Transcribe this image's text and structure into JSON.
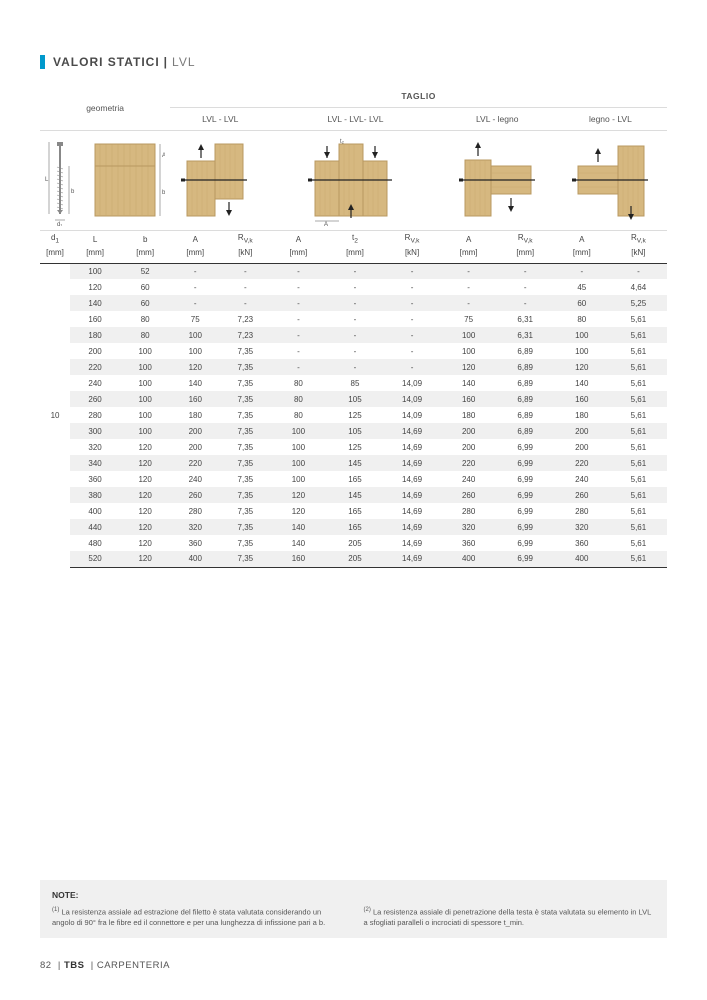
{
  "title": {
    "main": "VALORI STATICI",
    "sub": "LVL"
  },
  "palette": {
    "accent": "#0099cc",
    "wood": "#d6b880",
    "woodgrain": "#c8a86c",
    "arrow": "#222222"
  },
  "header": {
    "taglio": "TAGLIO",
    "groups": [
      "geometria",
      "LVL - LVL",
      "LVL - LVL- LVL",
      "LVL - legno",
      "legno - LVL"
    ],
    "cols_geom": [
      "d₁",
      "L",
      "b"
    ],
    "cols_a": [
      "A",
      "R_{V,k}"
    ],
    "cols_b": [
      "A",
      "t₂",
      "R_{V,k}"
    ],
    "cols_c": [
      "A",
      "R_{V,k}"
    ],
    "cols_d": [
      "A",
      "R_{V,k}"
    ],
    "units_geom": [
      "[mm]",
      "[mm]",
      "[mm]"
    ],
    "units_a": [
      "[mm]",
      "[kN]"
    ],
    "units_b": [
      "[mm]",
      "[mm]",
      "[kN]"
    ],
    "units_c": [
      "[mm]",
      "[mm]",
      "[kN]"
    ],
    "units_d": [
      "[mm]",
      "[kN]"
    ]
  },
  "d1_value": "10",
  "rows": [
    {
      "L": "100",
      "b": "52",
      "a": [
        "-",
        "-"
      ],
      "b3": [
        "-",
        "-",
        "-"
      ],
      "c": [
        "-",
        "-"
      ],
      "d": [
        "-",
        "-"
      ]
    },
    {
      "L": "120",
      "b": "60",
      "a": [
        "-",
        "-"
      ],
      "b3": [
        "-",
        "-",
        "-"
      ],
      "c": [
        "-",
        "-"
      ],
      "d": [
        "45",
        "4,64"
      ]
    },
    {
      "L": "140",
      "b": "60",
      "a": [
        "-",
        "-"
      ],
      "b3": [
        "-",
        "-",
        "-"
      ],
      "c": [
        "-",
        "-"
      ],
      "d": [
        "60",
        "5,25"
      ]
    },
    {
      "L": "160",
      "b": "80",
      "a": [
        "75",
        "7,23"
      ],
      "b3": [
        "-",
        "-",
        "-"
      ],
      "c": [
        "75",
        "6,31"
      ],
      "d": [
        "80",
        "5,61"
      ]
    },
    {
      "L": "180",
      "b": "80",
      "a": [
        "100",
        "7,23"
      ],
      "b3": [
        "-",
        "-",
        "-"
      ],
      "c": [
        "100",
        "6,31"
      ],
      "d": [
        "100",
        "5,61"
      ]
    },
    {
      "L": "200",
      "b": "100",
      "a": [
        "100",
        "7,35"
      ],
      "b3": [
        "-",
        "-",
        "-"
      ],
      "c": [
        "100",
        "6,89"
      ],
      "d": [
        "100",
        "5,61"
      ]
    },
    {
      "L": "220",
      "b": "100",
      "a": [
        "120",
        "7,35"
      ],
      "b3": [
        "-",
        "-",
        "-"
      ],
      "c": [
        "120",
        "6,89"
      ],
      "d": [
        "120",
        "5,61"
      ]
    },
    {
      "L": "240",
      "b": "100",
      "a": [
        "140",
        "7,35"
      ],
      "b3": [
        "80",
        "85",
        "14,09"
      ],
      "c": [
        "140",
        "6,89"
      ],
      "d": [
        "140",
        "5,61"
      ]
    },
    {
      "L": "260",
      "b": "100",
      "a": [
        "160",
        "7,35"
      ],
      "b3": [
        "80",
        "105",
        "14,09"
      ],
      "c": [
        "160",
        "6,89"
      ],
      "d": [
        "160",
        "5,61"
      ]
    },
    {
      "L": "280",
      "b": "100",
      "a": [
        "180",
        "7,35"
      ],
      "b3": [
        "80",
        "125",
        "14,09"
      ],
      "c": [
        "180",
        "6,89"
      ],
      "d": [
        "180",
        "5,61"
      ]
    },
    {
      "L": "300",
      "b": "100",
      "a": [
        "200",
        "7,35"
      ],
      "b3": [
        "100",
        "105",
        "14,69"
      ],
      "c": [
        "200",
        "6,89"
      ],
      "d": [
        "200",
        "5,61"
      ]
    },
    {
      "L": "320",
      "b": "120",
      "a": [
        "200",
        "7,35"
      ],
      "b3": [
        "100",
        "125",
        "14,69"
      ],
      "c": [
        "200",
        "6,99"
      ],
      "d": [
        "200",
        "5,61"
      ]
    },
    {
      "L": "340",
      "b": "120",
      "a": [
        "220",
        "7,35"
      ],
      "b3": [
        "100",
        "145",
        "14,69"
      ],
      "c": [
        "220",
        "6,99"
      ],
      "d": [
        "220",
        "5,61"
      ]
    },
    {
      "L": "360",
      "b": "120",
      "a": [
        "240",
        "7,35"
      ],
      "b3": [
        "100",
        "165",
        "14,69"
      ],
      "c": [
        "240",
        "6,99"
      ],
      "d": [
        "240",
        "5,61"
      ]
    },
    {
      "L": "380",
      "b": "120",
      "a": [
        "260",
        "7,35"
      ],
      "b3": [
        "120",
        "145",
        "14,69"
      ],
      "c": [
        "260",
        "6,99"
      ],
      "d": [
        "260",
        "5,61"
      ]
    },
    {
      "L": "400",
      "b": "120",
      "a": [
        "280",
        "7,35"
      ],
      "b3": [
        "120",
        "165",
        "14,69"
      ],
      "c": [
        "280",
        "6,99"
      ],
      "d": [
        "280",
        "5,61"
      ]
    },
    {
      "L": "440",
      "b": "120",
      "a": [
        "320",
        "7,35"
      ],
      "b3": [
        "140",
        "165",
        "14,69"
      ],
      "c": [
        "320",
        "6,99"
      ],
      "d": [
        "320",
        "5,61"
      ]
    },
    {
      "L": "480",
      "b": "120",
      "a": [
        "360",
        "7,35"
      ],
      "b3": [
        "140",
        "205",
        "14,69"
      ],
      "c": [
        "360",
        "6,99"
      ],
      "d": [
        "360",
        "5,61"
      ]
    },
    {
      "L": "520",
      "b": "120",
      "a": [
        "400",
        "7,35"
      ],
      "b3": [
        "160",
        "205",
        "14,69"
      ],
      "c": [
        "400",
        "6,99"
      ],
      "d": [
        "400",
        "5,61"
      ]
    }
  ],
  "notes": {
    "title": "NOTE:",
    "n1_sup": "(1)",
    "n1": "La resistenza assiale ad estrazione del filetto è stata valutata considerando un angolo di 90° fra le fibre ed il connettore e per una lunghezza di infissione pari a b.",
    "n2_sup": "(2)",
    "n2": "La resistenza assiale di penetrazione della testa è stata valutata su elemento in LVL a sfogliati paralleli o incrociati di spessore t_min."
  },
  "footer": {
    "page": "82",
    "code": "TBS",
    "section": "CARPENTERIA"
  }
}
